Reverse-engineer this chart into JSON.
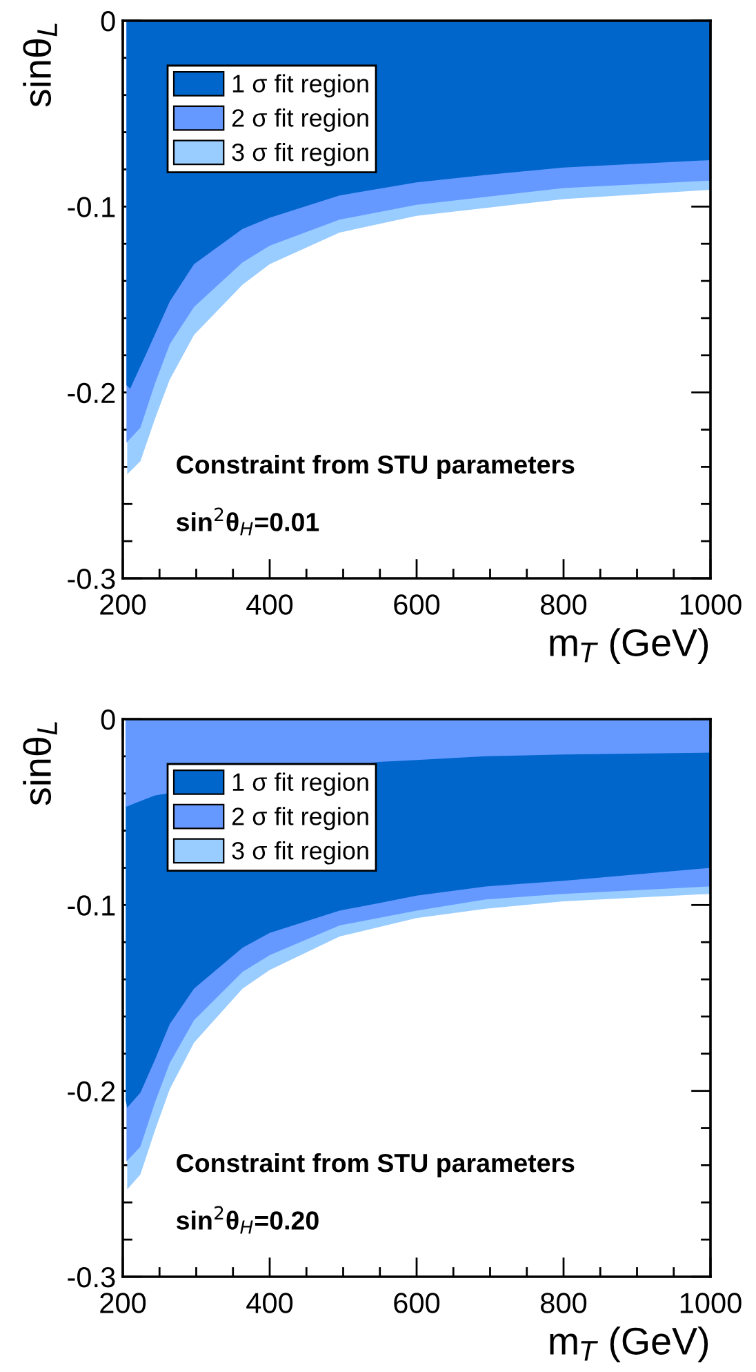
{
  "chart_data": [
    {
      "type": "area",
      "xlabel": "m$_{T}$ (GeV)",
      "ylabel": "sinθ$_{L}$",
      "xlim": [
        200,
        1000
      ],
      "ylim": [
        -0.3,
        0
      ],
      "xticks": [
        200,
        {
          "value": 250,
          "label": null
        },
        400,
        {
          "value": 300,
          "label": null
        },
        {
          "value": 350,
          "label": null
        },
        {
          "value": 450,
          "label": null
        },
        {
          "value": 500,
          "label": null
        },
        {
          "value": 550,
          "label": null
        },
        600,
        {
          "value": 650,
          "label": null
        },
        {
          "value": 700,
          "label": null
        },
        {
          "value": 750,
          "label": null
        },
        800,
        {
          "value": 850,
          "label": null
        },
        {
          "value": 900,
          "label": null
        },
        {
          "value": 950,
          "label": null
        },
        1000
      ],
      "yticks": [
        {
          "value": -0.3,
          "label": "-0.3"
        },
        {
          "value": -0.28,
          "label": null
        },
        {
          "value": -0.26,
          "label": null
        },
        {
          "value": -0.24,
          "label": null
        },
        {
          "value": -0.22,
          "label": null
        },
        {
          "value": -0.2,
          "label": "-0.2"
        },
        {
          "value": -0.18,
          "label": null
        },
        {
          "value": -0.16,
          "label": null
        },
        {
          "value": -0.14,
          "label": null
        },
        {
          "value": -0.12,
          "label": null
        },
        {
          "value": -0.1,
          "label": "-0.1"
        },
        {
          "value": -0.08,
          "label": null
        },
        {
          "value": -0.06,
          "label": null
        },
        {
          "value": -0.04,
          "label": null
        },
        {
          "value": -0.02,
          "label": null
        },
        0
      ],
      "legend": "top left",
      "series": [
        {
          "name": "1 σ fit region",
          "color": "#0066cc",
          "x": [
            205,
            210,
            231,
            264,
            297,
            363,
            400,
            495,
            600,
            694,
            800,
            1000
          ],
          "values": [
            -0.196,
            -0.198,
            -0.18,
            -0.151,
            -0.131,
            -0.112,
            -0.106,
            -0.094,
            -0.087,
            -0.083,
            -0.079,
            -0.075
          ]
        },
        {
          "name": "2 σ fit region",
          "color": "#6699ff",
          "x": [
            205,
            224,
            244,
            264,
            297,
            363,
            400,
            495,
            600,
            800,
            1000
          ],
          "values": [
            -0.227,
            -0.219,
            -0.195,
            -0.174,
            -0.154,
            -0.13,
            -0.121,
            -0.107,
            -0.099,
            -0.09,
            -0.086
          ]
        },
        {
          "name": "3 σ fit region",
          "color": "#99ccff",
          "x": [
            206,
            224,
            244,
            264,
            297,
            363,
            400,
            495,
            600,
            800,
            1000
          ],
          "values": [
            -0.244,
            -0.237,
            -0.214,
            -0.193,
            -0.169,
            -0.142,
            -0.131,
            -0.114,
            -0.105,
            -0.096,
            -0.091
          ]
        }
      ],
      "annotations": [
        "Constraint from STU parameters",
        "sin$^{2}$θ$_{H}$=0.01"
      ]
    },
    {
      "type": "area",
      "xlabel": "m$_{T}$ (GeV)",
      "ylabel": "sinθ$_{L}$",
      "xlim": [
        200,
        1000
      ],
      "ylim": [
        -0.3,
        0
      ],
      "xticks": [
        200,
        {
          "value": 250,
          "label": null
        },
        400,
        {
          "value": 300,
          "label": null
        },
        {
          "value": 350,
          "label": null
        },
        {
          "value": 450,
          "label": null
        },
        {
          "value": 500,
          "label": null
        },
        {
          "value": 550,
          "label": null
        },
        600,
        {
          "value": 650,
          "label": null
        },
        {
          "value": 700,
          "label": null
        },
        {
          "value": 750,
          "label": null
        },
        800,
        {
          "value": 850,
          "label": null
        },
        {
          "value": 900,
          "label": null
        },
        {
          "value": 950,
          "label": null
        },
        1000
      ],
      "yticks": [
        {
          "value": -0.3,
          "label": "-0.3"
        },
        {
          "value": -0.28,
          "label": null
        },
        {
          "value": -0.26,
          "label": null
        },
        {
          "value": -0.24,
          "label": null
        },
        {
          "value": -0.22,
          "label": null
        },
        {
          "value": -0.2,
          "label": "-0.2"
        },
        {
          "value": -0.18,
          "label": null
        },
        {
          "value": -0.16,
          "label": null
        },
        {
          "value": -0.14,
          "label": null
        },
        {
          "value": -0.12,
          "label": null
        },
        {
          "value": -0.1,
          "label": "-0.1"
        },
        {
          "value": -0.08,
          "label": null
        },
        {
          "value": -0.06,
          "label": null
        },
        {
          "value": -0.04,
          "label": null
        },
        {
          "value": -0.02,
          "label": null
        },
        0
      ],
      "legend": "top left",
      "series": [
        {
          "color": "#6699ff",
          "x": [
            204,
            206,
            218,
            244,
            548,
            600,
            694,
            800,
            1000
          ],
          "values": [
            -0.047,
            -0.047,
            -0.045,
            -0.041,
            -0.023,
            -0.022,
            -0.02,
            -0.019,
            -0.018
          ]
        },
        {
          "name": "1 σ fit region",
          "color": "#0066cc",
          "x": [
            204,
            206,
            224,
            244,
            264,
            297,
            363,
            400,
            495,
            548,
            600,
            694,
            800,
            1000
          ],
          "values": [
            -0.205,
            -0.209,
            -0.201,
            -0.183,
            -0.164,
            -0.145,
            -0.123,
            -0.115,
            -0.103,
            -0.099,
            -0.095,
            -0.09,
            -0.087,
            -0.08
          ]
        },
        {
          "name": "2 σ fit region",
          "color": "#6699ff",
          "x": [
            205,
            224,
            244,
            264,
            297,
            363,
            400,
            495,
            600,
            694,
            800,
            1000
          ],
          "values": [
            -0.238,
            -0.23,
            -0.206,
            -0.185,
            -0.162,
            -0.136,
            -0.127,
            -0.111,
            -0.103,
            -0.097,
            -0.094,
            -0.09
          ]
        },
        {
          "name": "3 σ fit region",
          "color": "#99ccff",
          "x": [
            206,
            224,
            244,
            264,
            297,
            363,
            400,
            495,
            600,
            694,
            800,
            1000
          ],
          "values": [
            -0.253,
            -0.245,
            -0.221,
            -0.199,
            -0.174,
            -0.145,
            -0.135,
            -0.117,
            -0.107,
            -0.102,
            -0.098,
            -0.094
          ]
        }
      ],
      "annotations": [
        "Constraint from STU parameters",
        "sin$^{2}$θ$_{H}$=0.20"
      ]
    }
  ]
}
